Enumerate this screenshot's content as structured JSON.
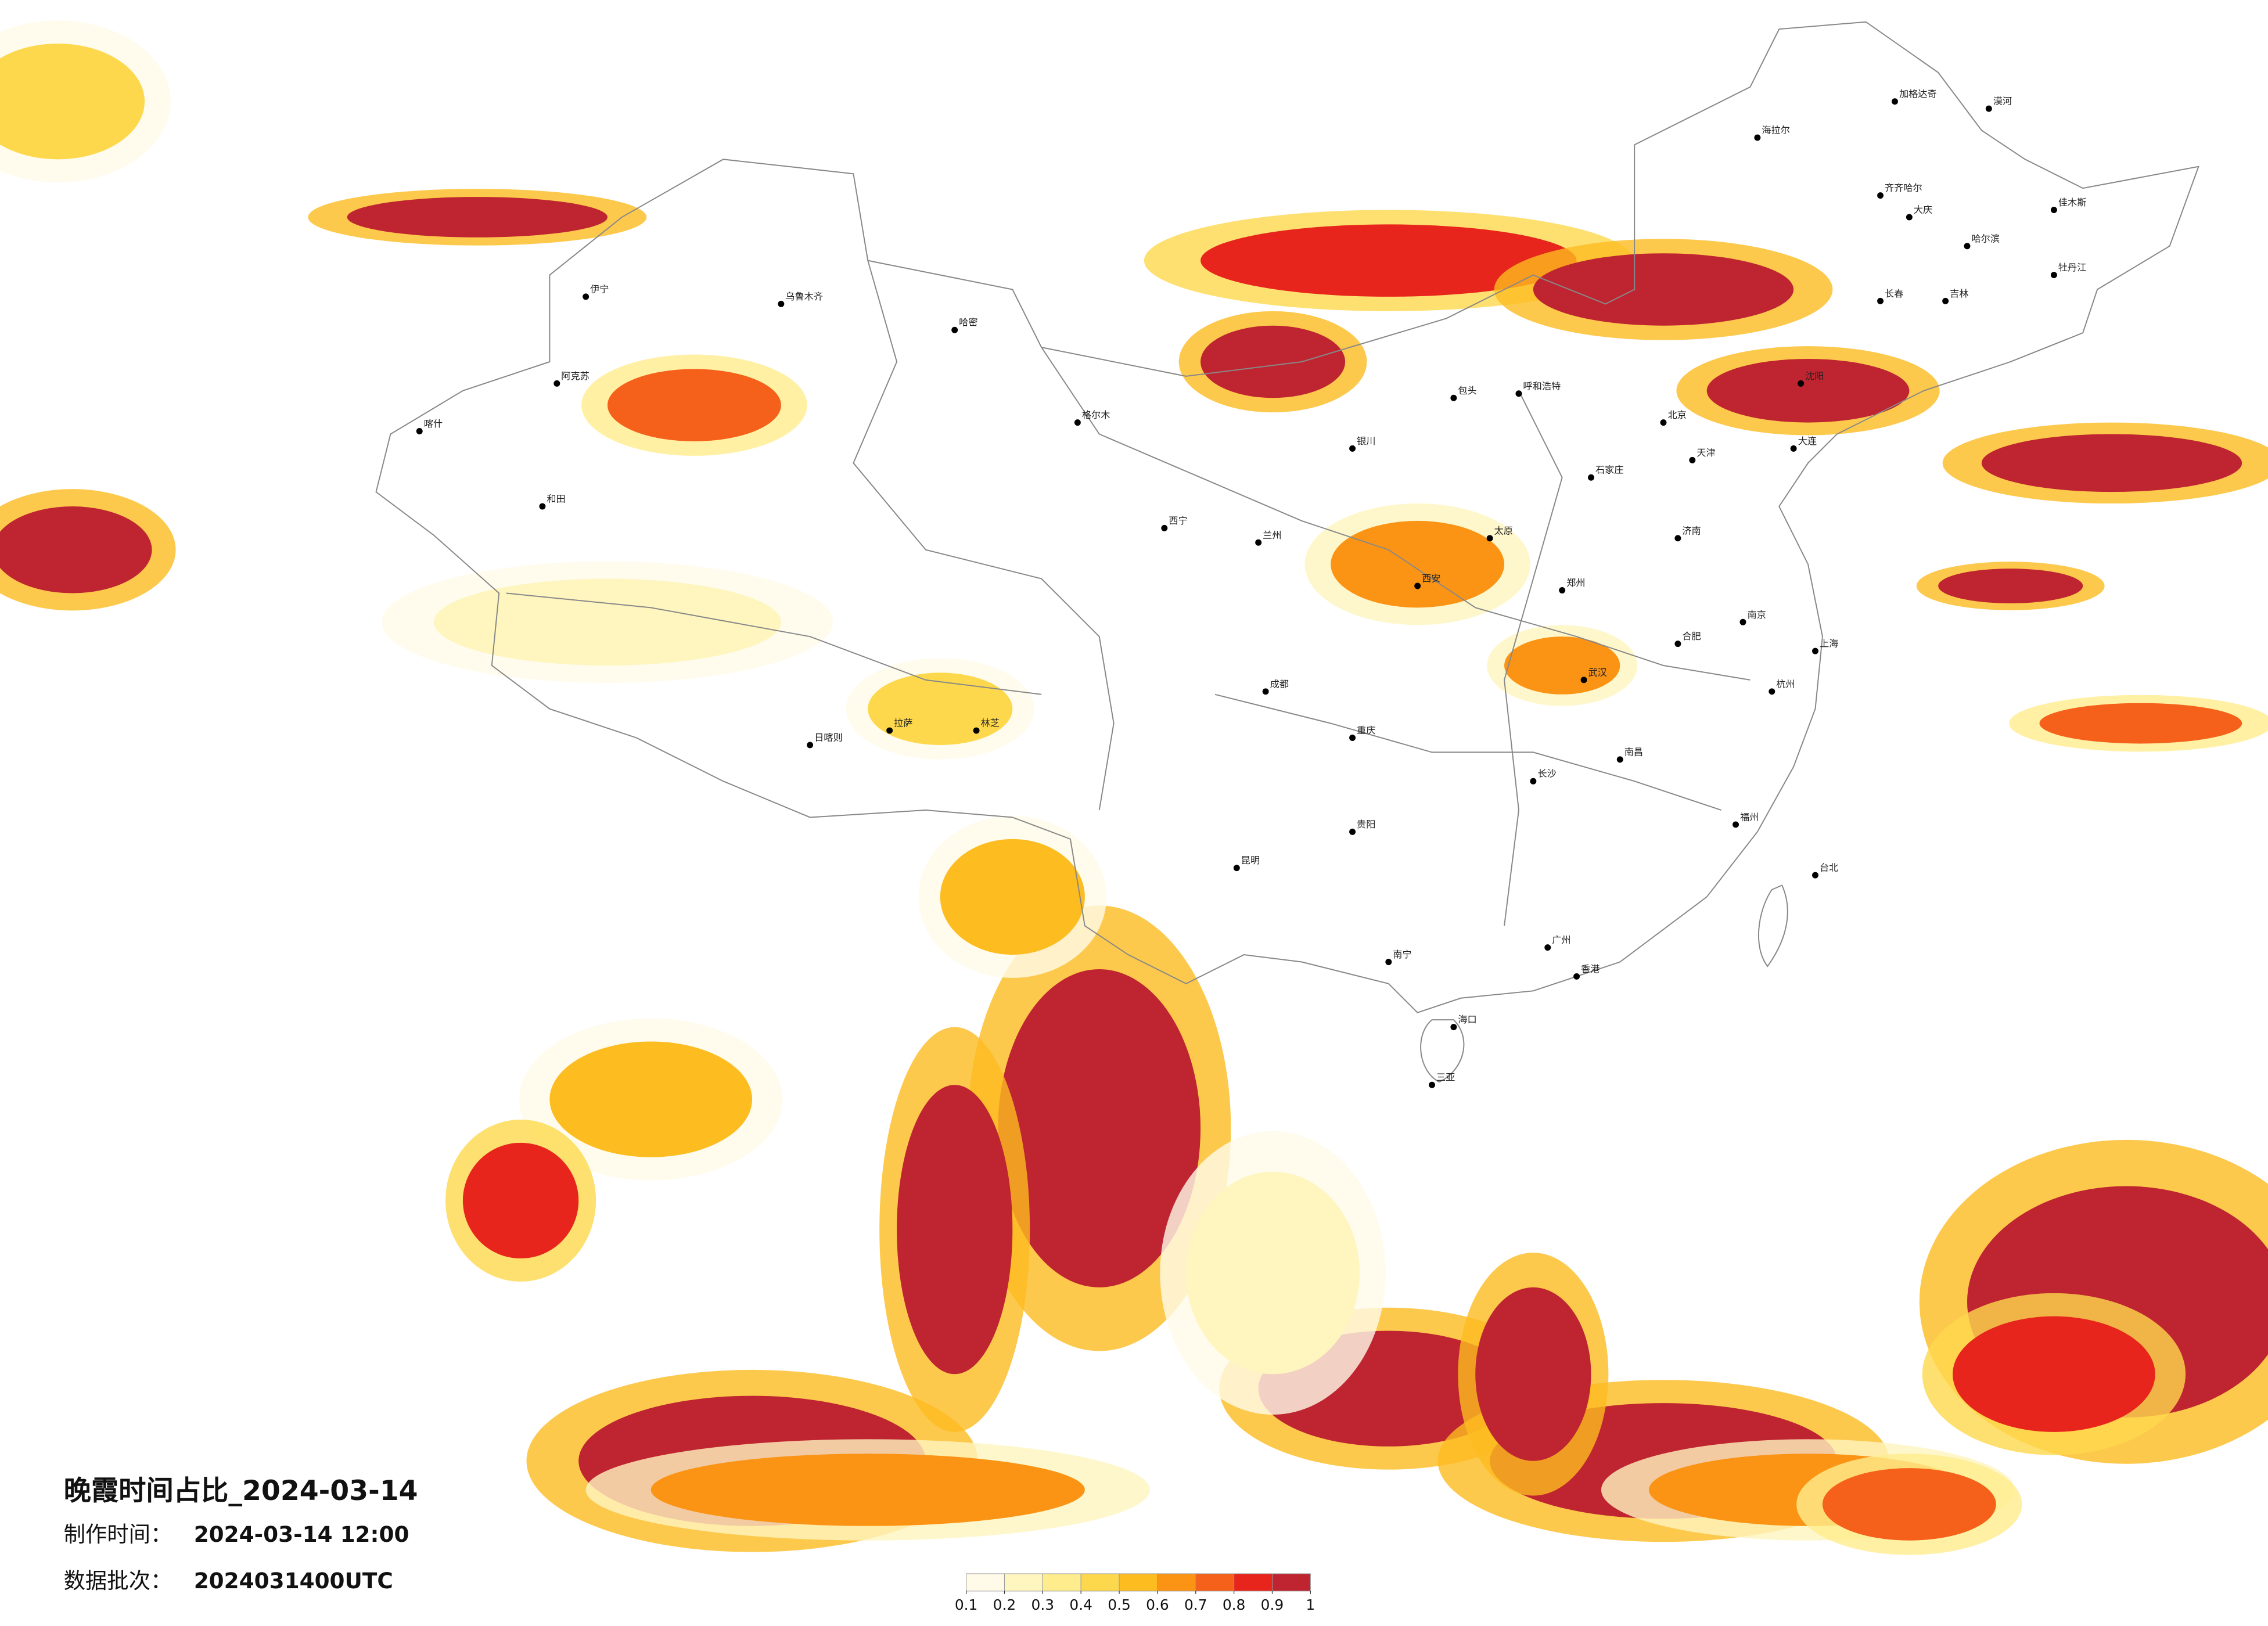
{
  "header": {
    "title": "晚霞时间占比_2024-03-14"
  },
  "info": [
    {
      "label": "制作时间：",
      "value": "2024-03-14 12:00"
    },
    {
      "label": "数据批次：",
      "value": "2024031400UTC"
    }
  ],
  "legend": {
    "colors": [
      "#fffbe8",
      "#fff5bf",
      "#ffec8c",
      "#fed84c",
      "#fdbc20",
      "#fb9414",
      "#f5601a",
      "#e8251c",
      "#bf2530"
    ],
    "ticks": [
      0.1,
      0.2,
      0.3,
      0.4,
      0.5,
      0.6,
      0.7,
      0.8,
      0.9,
      1
    ]
  },
  "cities": [
    "北京",
    "天津",
    "石家庄",
    "太原",
    "呼和浩特",
    "包头",
    "沈阳",
    "长春",
    "哈尔滨",
    "齐齐哈尔",
    "大庆",
    "吉林",
    "济南",
    "郑州",
    "西安",
    "兰州",
    "西宁",
    "银川",
    "武汉",
    "长沙",
    "南昌",
    "合肥",
    "南京",
    "上海",
    "杭州",
    "福州",
    "台北",
    "广州",
    "香港",
    "南宁",
    "海口",
    "三亚",
    "昆明",
    "贵阳",
    "成都",
    "重庆",
    "拉萨",
    "乌鲁木齐",
    "伊宁",
    "喀什",
    "和田",
    "阿克苏",
    "哈密",
    "格尔木",
    "日喀则",
    "林芝",
    "漠河",
    "加格达奇",
    "海拉尔",
    "佳木斯",
    "牡丹江",
    "大连"
  ]
}
